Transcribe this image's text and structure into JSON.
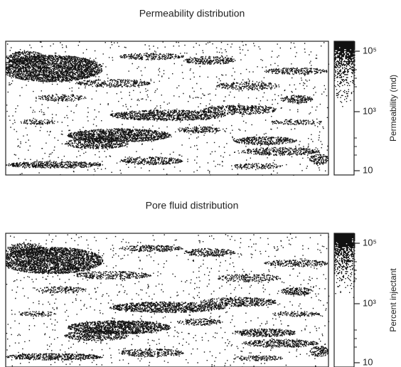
{
  "panels": [
    {
      "title": "Permeability distribution",
      "colorbar_label": "Permeability (md)",
      "colorbar_ticks": [
        "10⁵",
        "10³",
        "10"
      ]
    },
    {
      "title": "Pore fluid distribution",
      "colorbar_label": "Percent injectant",
      "colorbar_ticks": [
        "10⁵",
        "10³",
        "10"
      ]
    }
  ]
}
